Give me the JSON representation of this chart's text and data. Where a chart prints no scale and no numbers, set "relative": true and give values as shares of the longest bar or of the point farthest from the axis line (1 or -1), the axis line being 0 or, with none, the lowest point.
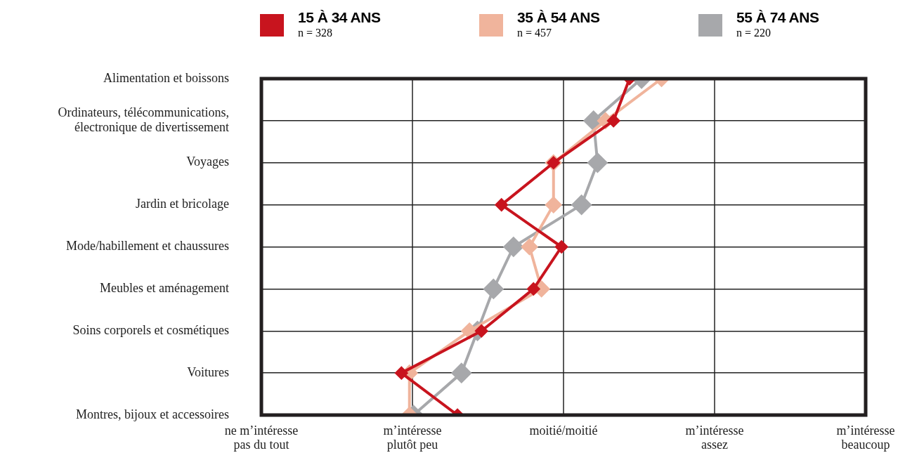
{
  "chart_data": {
    "type": "line",
    "orientation": "horizontal",
    "relative": true,
    "categories": [
      "Alimentation et boissons",
      "Ordinateurs, télécommunications, électronique de divertissement",
      "Voyages",
      "Jardin et bricolage",
      "Mode/habillement et chaussures",
      "Meubles et aménagement",
      "Soins corporels et cosmétiques",
      "Voitures",
      "Montres, bijoux et accessoires"
    ],
    "series": [
      {
        "name": "15 À 34 ANS",
        "color": "#c8141e",
        "values": [
          0.92,
          0.88,
          0.73,
          0.6,
          0.75,
          0.68,
          0.55,
          0.35,
          0.49
        ]
      },
      {
        "name": "35 À 54 ANS",
        "color": "#f0b49c",
        "values": [
          1.0,
          0.86,
          0.73,
          0.73,
          0.67,
          0.7,
          0.52,
          0.37,
          0.37
        ]
      },
      {
        "name": "55 À 74 ANS",
        "color": "#a7a8ab",
        "values": [
          0.95,
          0.83,
          0.84,
          0.8,
          0.63,
          0.58,
          0.54,
          0.5,
          0.38
        ]
      }
    ],
    "annotations": [
      "n = 328",
      "n = 457",
      "n = 220",
      "ne m’intéresse pas du tout",
      "m’intéresse plutôt peu",
      "moitié/moitié",
      "m’intéresse assez",
      "m’intéresse beaucoup"
    ],
    "grid": true,
    "legend": "top",
    "marker": "diamond",
    "line_style": "solid"
  }
}
